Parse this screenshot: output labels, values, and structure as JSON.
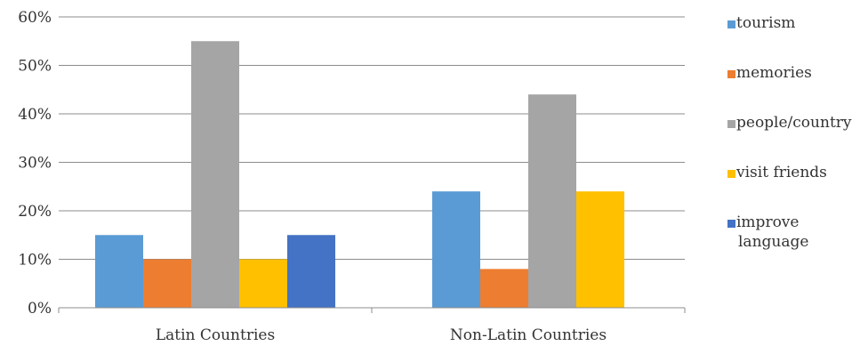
{
  "chart_data": {
    "type": "bar",
    "title": "",
    "xlabel": "",
    "ylabel": "",
    "categories": [
      "Latin Countries",
      "Non-Latin Countries"
    ],
    "series": [
      {
        "name": "tourism",
        "values": [
          15,
          24
        ],
        "color": "#5B9BD5"
      },
      {
        "name": "memories",
        "values": [
          10,
          8
        ],
        "color": "#ED7D31"
      },
      {
        "name": "people/country",
        "values": [
          55,
          44
        ],
        "color": "#A5A5A5"
      },
      {
        "name": "visit friends",
        "values": [
          10,
          24
        ],
        "color": "#FFC000"
      },
      {
        "name": "improve language",
        "values": [
          15,
          0
        ],
        "color": "#4472C4"
      }
    ],
    "ylim": [
      0,
      60
    ],
    "yticks": [
      0,
      10,
      20,
      30,
      40,
      50,
      60
    ],
    "ytick_labels": [
      "0%",
      "10%",
      "20%",
      "30%",
      "40%",
      "50%",
      "60%"
    ],
    "grid": true,
    "legend_position": "right"
  }
}
